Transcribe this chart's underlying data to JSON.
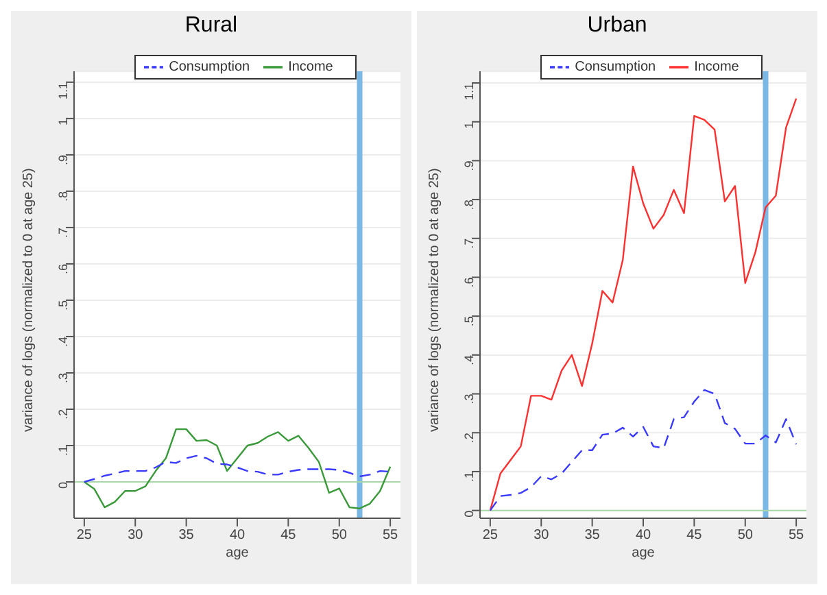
{
  "chart_data": [
    {
      "type": "line",
      "title": "Rural",
      "xlabel": "age",
      "ylabel": "variance of logs (normalized to 0 at age 25)",
      "x": [
        25,
        26,
        27,
        28,
        29,
        30,
        31,
        32,
        33,
        34,
        35,
        36,
        37,
        38,
        39,
        40,
        41,
        42,
        43,
        44,
        45,
        46,
        47,
        48,
        49,
        50,
        51,
        52,
        53,
        54,
        55
      ],
      "series": [
        {
          "name": "Income",
          "color": "#3a9a3a",
          "line_style": "solid",
          "values": [
            0,
            -0.02,
            -0.07,
            -0.055,
            -0.025,
            -0.025,
            -0.012,
            0.03,
            0.065,
            0.145,
            0.145,
            0.113,
            0.115,
            0.1,
            0.03,
            0.065,
            0.1,
            0.107,
            0.125,
            0.137,
            0.113,
            0.127,
            0.093,
            0.055,
            -0.03,
            -0.018,
            -0.07,
            -0.073,
            -0.06,
            -0.025,
            0.042
          ]
        },
        {
          "name": "Consumption",
          "color": "#3a3aff",
          "line_style": "dashed",
          "values": [
            0,
            0.008,
            0.017,
            0.023,
            0.03,
            0.03,
            0.03,
            0.04,
            0.055,
            0.052,
            0.065,
            0.072,
            0.065,
            0.05,
            0.048,
            0.04,
            0.03,
            0.028,
            0.02,
            0.02,
            0.028,
            0.033,
            0.035,
            0.035,
            0.035,
            0.033,
            0.025,
            0.015,
            0.02,
            0.03,
            0.028
          ]
        }
      ],
      "xlim": [
        24,
        56
      ],
      "xticks": [
        25,
        30,
        35,
        40,
        45,
        50,
        55
      ],
      "ylim": [
        -0.1,
        1.13
      ],
      "yticks": [
        0,
        {
          "value": 0.1,
          "label": ".1"
        },
        {
          "value": 0.2,
          "label": ".2"
        },
        {
          "value": 0.3,
          "label": ".3"
        },
        {
          "value": 0.4,
          "label": ".4"
        },
        {
          "value": 0.5,
          "label": ".5"
        },
        {
          "value": 0.6,
          "label": ".6"
        },
        {
          "value": 0.7,
          "label": ".7"
        },
        {
          "value": 0.8,
          "label": ".8"
        },
        {
          "value": 0.9,
          "label": ".9"
        },
        1,
        1.1
      ],
      "ref_lines": [
        {
          "axis": "x",
          "value": 52,
          "color": "#7ab8e6"
        },
        {
          "axis": "y",
          "value": 0,
          "color": "#a8d8a8"
        }
      ],
      "grid": "y",
      "legend": "top",
      "marker": "none"
    },
    {
      "type": "line",
      "title": "Urban",
      "xlabel": "age",
      "ylabel": "variance of logs (normalized to 0 at age 25)",
      "x": [
        25,
        26,
        27,
        28,
        29,
        30,
        31,
        32,
        33,
        34,
        35,
        36,
        37,
        38,
        39,
        40,
        41,
        42,
        43,
        44,
        45,
        46,
        47,
        48,
        49,
        50,
        51,
        52,
        53,
        54,
        55
      ],
      "series": [
        {
          "name": "Income",
          "color": "#ff3030",
          "line_style": "solid",
          "values": [
            0,
            0.095,
            0.13,
            0.165,
            0.295,
            0.295,
            0.285,
            0.36,
            0.4,
            0.32,
            0.43,
            0.565,
            0.535,
            0.645,
            0.885,
            0.79,
            0.725,
            0.76,
            0.825,
            0.765,
            1.015,
            1.005,
            0.98,
            0.795,
            0.835,
            0.585,
            0.665,
            0.78,
            0.81,
            0.985,
            1.06
          ]
        },
        {
          "name": "Consumption",
          "color": "#3a3aff",
          "line_style": "dashed",
          "values": [
            0,
            0.037,
            0.04,
            0.045,
            0.06,
            0.088,
            0.08,
            0.095,
            0.125,
            0.155,
            0.155,
            0.195,
            0.198,
            0.213,
            0.19,
            0.215,
            0.165,
            0.16,
            0.235,
            0.24,
            0.28,
            0.31,
            0.3,
            0.225,
            0.21,
            0.172,
            0.172,
            0.193,
            0.175,
            0.235,
            0.17
          ]
        }
      ],
      "xlim": [
        24,
        56
      ],
      "xticks": [
        25,
        30,
        35,
        40,
        45,
        50,
        55
      ],
      "ylim": [
        -0.02,
        1.13
      ],
      "yticks": [
        0,
        {
          "value": 0.1,
          "label": ".1"
        },
        {
          "value": 0.2,
          "label": ".2"
        },
        {
          "value": 0.3,
          "label": ".3"
        },
        {
          "value": 0.4,
          "label": ".4"
        },
        {
          "value": 0.5,
          "label": ".5"
        },
        {
          "value": 0.6,
          "label": ".6"
        },
        {
          "value": 0.7,
          "label": ".7"
        },
        {
          "value": 0.8,
          "label": ".8"
        },
        {
          "value": 0.9,
          "label": ".9"
        },
        1,
        1.1
      ],
      "ref_lines": [
        {
          "axis": "x",
          "value": 52,
          "color": "#7ab8e6"
        },
        {
          "axis": "y",
          "value": 0,
          "color": "#a8d8a8"
        }
      ],
      "grid": "y",
      "legend": "top",
      "marker": "none"
    }
  ]
}
